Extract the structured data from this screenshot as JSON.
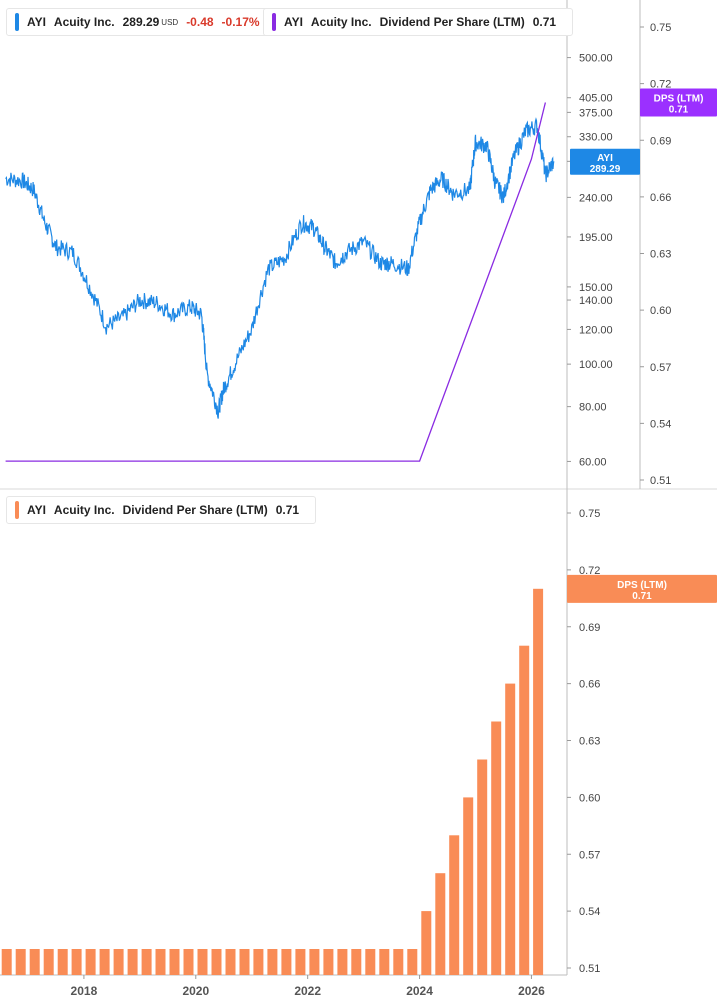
{
  "legend_price": {
    "ticker": "AYI",
    "name": "Acuity Inc.",
    "price": "289.29",
    "currency": "USD",
    "change": "-0.48",
    "change_pct": "-0.17%"
  },
  "legend_dps_top": {
    "ticker": "AYI",
    "name": "Acuity Inc.",
    "metric": "Dividend Per Share (LTM)",
    "value": "0.71"
  },
  "legend_dps_bottom": {
    "ticker": "AYI",
    "name": "Acuity Inc.",
    "metric": "Dividend Per Share (LTM)",
    "value": "0.71"
  },
  "tags": {
    "price_tag": {
      "line1": "AYI",
      "line2": "289.29"
    },
    "dps_tag_top": {
      "line1": "DPS (LTM)",
      "line2": "0.71"
    },
    "dps_tag_bottom": {
      "line1": "DPS (LTM)",
      "line2": "0.71"
    }
  },
  "colors": {
    "price": "#1e88e5",
    "dps_line": "#8a2be2",
    "dps_bars": "#f98c56",
    "dps_tag": "#9b30ff",
    "bar_tag": "#f98c56",
    "negative": "#d93a2b"
  },
  "chart_data": [
    {
      "type": "line",
      "series": [
        {
          "name": "AYI",
          "x": [
            2016.6,
            2016.9,
            2017.1,
            2017.3,
            2017.5,
            2017.8,
            2018.1,
            2018.4,
            2018.7,
            2019.0,
            2019.3,
            2019.6,
            2019.9,
            2020.1,
            2020.2,
            2020.4,
            2020.5,
            2020.7,
            2021.0,
            2021.3,
            2021.6,
            2021.9,
            2022.1,
            2022.3,
            2022.5,
            2022.7,
            2023.0,
            2023.3,
            2023.5,
            2023.8,
            2024.0,
            2024.2,
            2024.4,
            2024.6,
            2024.9,
            2025.0,
            2025.2,
            2025.35,
            2025.5,
            2025.7,
            2025.9,
            2026.1,
            2026.25,
            2026.4
          ],
          "values": [
            265,
            262,
            250,
            210,
            185,
            180,
            150,
            122,
            128,
            140,
            138,
            130,
            135,
            130,
            95,
            78,
            88,
            100,
            120,
            165,
            175,
            210,
            205,
            185,
            170,
            180,
            190,
            170,
            170,
            165,
            210,
            250,
            265,
            245,
            250,
            320,
            315,
            260,
            240,
            300,
            340,
            350,
            270,
            290
          ]
        }
      ],
      "ylim": [
        55,
        560
      ],
      "y_ticks": [
        500,
        405,
        375,
        330,
        290,
        240,
        195,
        150,
        140,
        120,
        100,
        80,
        60
      ],
      "y_tick_labels": [
        "500.00",
        "405.00",
        "375.00",
        "330.00",
        "290.00",
        "240.00",
        "195.00",
        "150.00",
        "140.00",
        "120.00",
        "100.00",
        "80.00",
        "60.00"
      ],
      "scale": "log"
    },
    {
      "type": "line",
      "series": [
        {
          "name": "DPS (LTM)",
          "x": [
            2016.6,
            2017.5,
            2018.5,
            2019.5,
            2020.5,
            2021.5,
            2022.5,
            2023.5,
            2024.0,
            2024.25,
            2024.5,
            2024.75,
            2025.0,
            2025.25,
            2025.5,
            2025.75,
            2026.0,
            2026.25
          ],
          "values": [
            0.52,
            0.52,
            0.52,
            0.52,
            0.52,
            0.52,
            0.52,
            0.52,
            0.52,
            0.54,
            0.56,
            0.58,
            0.6,
            0.62,
            0.64,
            0.66,
            0.68,
            0.71
          ]
        }
      ],
      "ylim": [
        0.505,
        0.76
      ],
      "y_ticks": [
        0.75,
        0.72,
        0.69,
        0.66,
        0.63,
        0.6,
        0.57,
        0.54,
        0.51
      ],
      "y_tick_labels": [
        "0.75",
        "0.72",
        "0.69",
        "0.66",
        "0.63",
        "0.60",
        "0.57",
        "0.54",
        "0.51"
      ]
    },
    {
      "type": "bar",
      "series": [
        {
          "name": "Dividend Per Share (LTM)",
          "x": [
            2016.62,
            2016.87,
            2017.12,
            2017.37,
            2017.62,
            2017.87,
            2018.12,
            2018.37,
            2018.62,
            2018.87,
            2019.12,
            2019.37,
            2019.62,
            2019.87,
            2020.12,
            2020.37,
            2020.62,
            2020.87,
            2021.12,
            2021.37,
            2021.62,
            2021.87,
            2022.12,
            2022.37,
            2022.62,
            2022.87,
            2023.12,
            2023.37,
            2023.62,
            2023.87,
            2024.12,
            2024.37,
            2024.62,
            2024.87,
            2025.12,
            2025.37,
            2025.62,
            2025.87,
            2026.12
          ],
          "values": [
            0.52,
            0.52,
            0.52,
            0.52,
            0.52,
            0.52,
            0.52,
            0.52,
            0.52,
            0.52,
            0.52,
            0.52,
            0.52,
            0.52,
            0.52,
            0.52,
            0.52,
            0.52,
            0.52,
            0.52,
            0.52,
            0.52,
            0.52,
            0.52,
            0.52,
            0.52,
            0.52,
            0.52,
            0.52,
            0.52,
            0.54,
            0.56,
            0.58,
            0.6,
            0.62,
            0.64,
            0.66,
            0.68,
            0.71
          ]
        }
      ],
      "ylim": [
        0.505,
        0.76
      ],
      "y_ticks": [
        0.75,
        0.72,
        0.69,
        0.66,
        0.63,
        0.6,
        0.57,
        0.54,
        0.51
      ],
      "y_tick_labels": [
        "0.75",
        "0.72",
        "0.69",
        "0.66",
        "0.63",
        "0.60",
        "0.57",
        "0.54",
        "0.51"
      ],
      "x_ticks": [
        2018,
        2020,
        2022,
        2024,
        2026
      ],
      "x_tick_labels": [
        "2018",
        "2020",
        "2022",
        "2024",
        "2026"
      ],
      "xlim": [
        2016.5,
        2026.6
      ]
    }
  ]
}
